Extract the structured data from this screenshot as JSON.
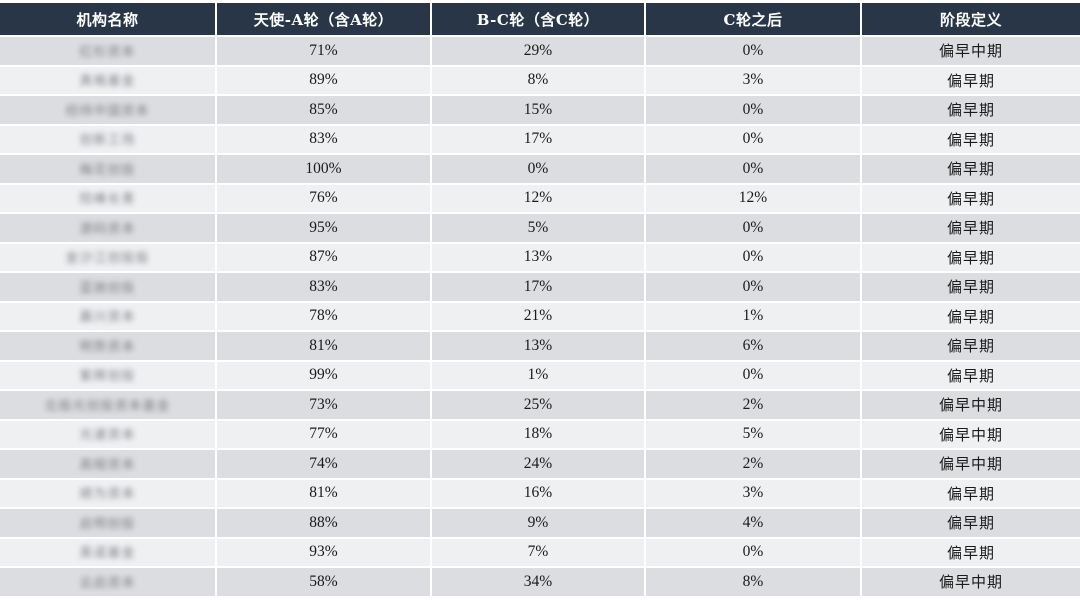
{
  "table": {
    "headers": [
      "机构名称",
      "天使-A轮（含A轮）",
      "B-C轮（含C轮）",
      "C轮之后",
      "阶段定义"
    ],
    "rows": [
      {
        "name": "红杉资本",
        "a": "71%",
        "bc": "29%",
        "c": "0%",
        "stage": "偏早中期"
      },
      {
        "name": "真格基金",
        "a": "89%",
        "bc": "8%",
        "c": "3%",
        "stage": "偏早期"
      },
      {
        "name": "经纬中国资本",
        "a": "85%",
        "bc": "15%",
        "c": "0%",
        "stage": "偏早期"
      },
      {
        "name": "创新工场",
        "a": "83%",
        "bc": "17%",
        "c": "0%",
        "stage": "偏早期"
      },
      {
        "name": "梅花创投",
        "a": "100%",
        "bc": "0%",
        "c": "0%",
        "stage": "偏早期"
      },
      {
        "name": "险峰长青",
        "a": "76%",
        "bc": "12%",
        "c": "12%",
        "stage": "偏早期"
      },
      {
        "name": "源码资本",
        "a": "95%",
        "bc": "5%",
        "c": "0%",
        "stage": "偏早期"
      },
      {
        "name": "金沙江创投投",
        "a": "87%",
        "bc": "13%",
        "c": "0%",
        "stage": "偏早期"
      },
      {
        "name": "蓝驰创投",
        "a": "83%",
        "bc": "17%",
        "c": "0%",
        "stage": "偏早期"
      },
      {
        "name": "晨兴资本",
        "a": "78%",
        "bc": "21%",
        "c": "1%",
        "stage": "偏早期"
      },
      {
        "name": "明势资本",
        "a": "81%",
        "bc": "13%",
        "c": "6%",
        "stage": "偏早期"
      },
      {
        "name": "紫辉创投",
        "a": "99%",
        "bc": "1%",
        "c": "0%",
        "stage": "偏早期"
      },
      {
        "name": "北极光创投资本基金",
        "a": "73%",
        "bc": "25%",
        "c": "2%",
        "stage": "偏早中期"
      },
      {
        "name": "光速资本",
        "a": "77%",
        "bc": "18%",
        "c": "5%",
        "stage": "偏早中期"
      },
      {
        "name": "高榕资本",
        "a": "74%",
        "bc": "24%",
        "c": "2%",
        "stage": "偏早中期"
      },
      {
        "name": "顺为资本",
        "a": "81%",
        "bc": "16%",
        "c": "3%",
        "stage": "偏早期"
      },
      {
        "name": "启明创投",
        "a": "88%",
        "bc": "9%",
        "c": "4%",
        "stage": "偏早期"
      },
      {
        "name": "英诺基金",
        "a": "93%",
        "bc": "7%",
        "c": "0%",
        "stage": "偏早期"
      },
      {
        "name": "云启资本",
        "a": "58%",
        "bc": "34%",
        "c": "8%",
        "stage": "偏早中期"
      }
    ]
  }
}
